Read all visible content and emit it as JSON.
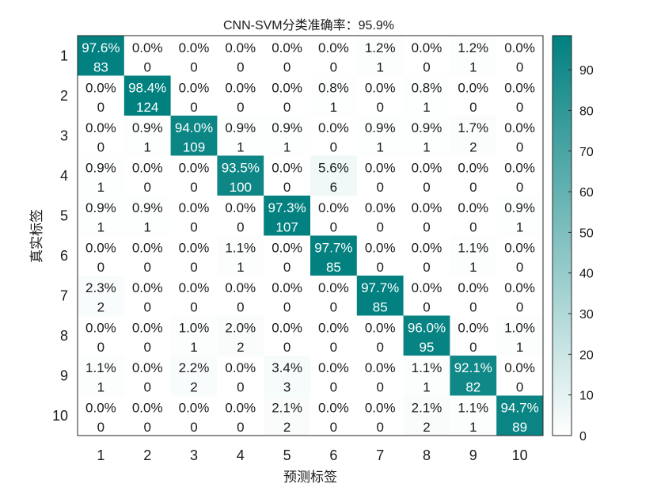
{
  "chart_data": {
    "type": "heatmap",
    "title": "CNN-SVM分类准确率：95.9%",
    "xlabel": "预测标签",
    "ylabel": "真实标签",
    "x_categories": [
      "1",
      "2",
      "3",
      "4",
      "5",
      "6",
      "7",
      "8",
      "9",
      "10"
    ],
    "y_categories": [
      "1",
      "2",
      "3",
      "4",
      "5",
      "6",
      "7",
      "8",
      "9",
      "10"
    ],
    "percent_labels": [
      [
        "97.6%",
        "0.0%",
        "0.0%",
        "0.0%",
        "0.0%",
        "0.0%",
        "1.2%",
        "0.0%",
        "1.2%",
        "0.0%"
      ],
      [
        "0.0%",
        "98.4%",
        "0.0%",
        "0.0%",
        "0.0%",
        "0.8%",
        "0.0%",
        "0.8%",
        "0.0%",
        "0.0%"
      ],
      [
        "0.0%",
        "0.9%",
        "94.0%",
        "0.9%",
        "0.9%",
        "0.0%",
        "0.9%",
        "0.9%",
        "1.7%",
        "0.0%"
      ],
      [
        "0.9%",
        "0.0%",
        "0.0%",
        "93.5%",
        "0.0%",
        "5.6%",
        "0.0%",
        "0.0%",
        "0.0%",
        "0.0%"
      ],
      [
        "0.9%",
        "0.9%",
        "0.0%",
        "0.0%",
        "97.3%",
        "0.0%",
        "0.0%",
        "0.0%",
        "0.0%",
        "0.9%"
      ],
      [
        "0.0%",
        "0.0%",
        "0.0%",
        "1.1%",
        "0.0%",
        "97.7%",
        "0.0%",
        "0.0%",
        "1.1%",
        "0.0%"
      ],
      [
        "2.3%",
        "0.0%",
        "0.0%",
        "0.0%",
        "0.0%",
        "0.0%",
        "97.7%",
        "0.0%",
        "0.0%",
        "0.0%"
      ],
      [
        "0.0%",
        "0.0%",
        "1.0%",
        "2.0%",
        "0.0%",
        "0.0%",
        "0.0%",
        "96.0%",
        "0.0%",
        "1.0%"
      ],
      [
        "1.1%",
        "0.0%",
        "2.2%",
        "0.0%",
        "3.4%",
        "0.0%",
        "0.0%",
        "1.1%",
        "92.1%",
        "0.0%"
      ],
      [
        "0.0%",
        "0.0%",
        "0.0%",
        "0.0%",
        "2.1%",
        "0.0%",
        "0.0%",
        "2.1%",
        "1.1%",
        "94.7%"
      ]
    ],
    "counts": [
      [
        83,
        0,
        0,
        0,
        0,
        0,
        1,
        0,
        1,
        0
      ],
      [
        0,
        124,
        0,
        0,
        0,
        1,
        0,
        1,
        0,
        0
      ],
      [
        0,
        1,
        109,
        1,
        1,
        0,
        1,
        1,
        2,
        0
      ],
      [
        1,
        0,
        0,
        100,
        0,
        6,
        0,
        0,
        0,
        0
      ],
      [
        1,
        1,
        0,
        0,
        107,
        0,
        0,
        0,
        0,
        1
      ],
      [
        0,
        0,
        0,
        1,
        0,
        85,
        0,
        0,
        1,
        0
      ],
      [
        2,
        0,
        0,
        0,
        0,
        0,
        85,
        0,
        0,
        0
      ],
      [
        0,
        0,
        1,
        2,
        0,
        0,
        0,
        95,
        0,
        1
      ],
      [
        1,
        0,
        2,
        0,
        3,
        0,
        0,
        1,
        82,
        0
      ],
      [
        0,
        0,
        0,
        0,
        2,
        0,
        0,
        2,
        1,
        89
      ]
    ],
    "colorbar": {
      "range": [
        0,
        98.4
      ],
      "ticks": [
        "0",
        "10",
        "20",
        "30",
        "40",
        "50",
        "60",
        "70",
        "80",
        "90"
      ],
      "colormap": [
        "#ffffff",
        "#00807f"
      ]
    },
    "grid": false
  }
}
